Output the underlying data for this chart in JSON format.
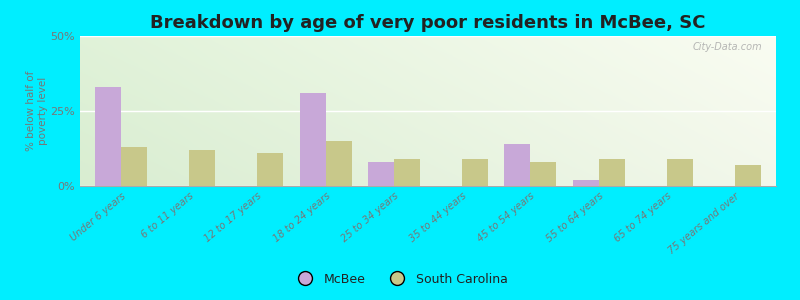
{
  "title": "Breakdown by age of very poor residents in McBee, SC",
  "ylabel": "% below half of\npoverty level",
  "categories": [
    "Under 6 years",
    "6 to 11 years",
    "12 to 17 years",
    "18 to 24 years",
    "25 to 34 years",
    "35 to 44 years",
    "45 to 54 years",
    "55 to 64 years",
    "65 to 74 years",
    "75 years and over"
  ],
  "mcbee_values": [
    33.0,
    0.0,
    0.0,
    31.0,
    8.0,
    0.0,
    14.0,
    2.0,
    0.0,
    0.0
  ],
  "sc_values": [
    13.0,
    12.0,
    11.0,
    15.0,
    9.0,
    9.0,
    8.0,
    9.0,
    9.0,
    7.0
  ],
  "mcbee_color": "#c8a8d8",
  "sc_color": "#c8c88a",
  "outer_bg": "#00eeff",
  "ylim": [
    0,
    50
  ],
  "yticks": [
    0,
    25,
    50
  ],
  "ytick_labels": [
    "0%",
    "25%",
    "50%"
  ],
  "bar_width": 0.38,
  "title_fontsize": 13,
  "legend_mcbee": "McBee",
  "legend_sc": "South Carolina",
  "watermark": "City-Data.com"
}
